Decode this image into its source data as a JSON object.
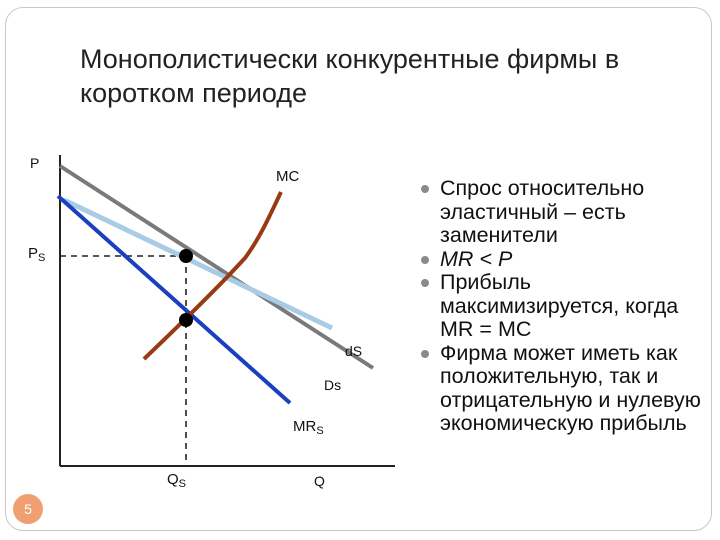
{
  "slide": {
    "title_line1": "Монополистически конкурентные фирмы в",
    "title_line2": "коротком периоде",
    "page_number": "5"
  },
  "diagram": {
    "axis_y_label": "P",
    "axis_x_label": "Q",
    "price_label": "P",
    "price_label_sub": "S",
    "quantity_label": "Q",
    "quantity_label_sub": "S",
    "curves": {
      "mc": "MC",
      "ds_small": "dS",
      "ds_big": "Ds",
      "mr": "MR",
      "mr_sub": "S"
    },
    "colors": {
      "mc": "#9a3a12",
      "d_small": "#a8cce6",
      "d_big": "#7a7a7a",
      "mr": "#1a3fbf"
    }
  },
  "bullets": [
    {
      "text": "Спрос относительно эластичный – есть заменители"
    },
    {
      "text": "MR < P"
    },
    {
      "text": "Прибыль максимизируется, когда MR = MC"
    },
    {
      "text": "Фирма может иметь как положительную, так и отрицательную и нулевую экономическую прибыль"
    }
  ]
}
